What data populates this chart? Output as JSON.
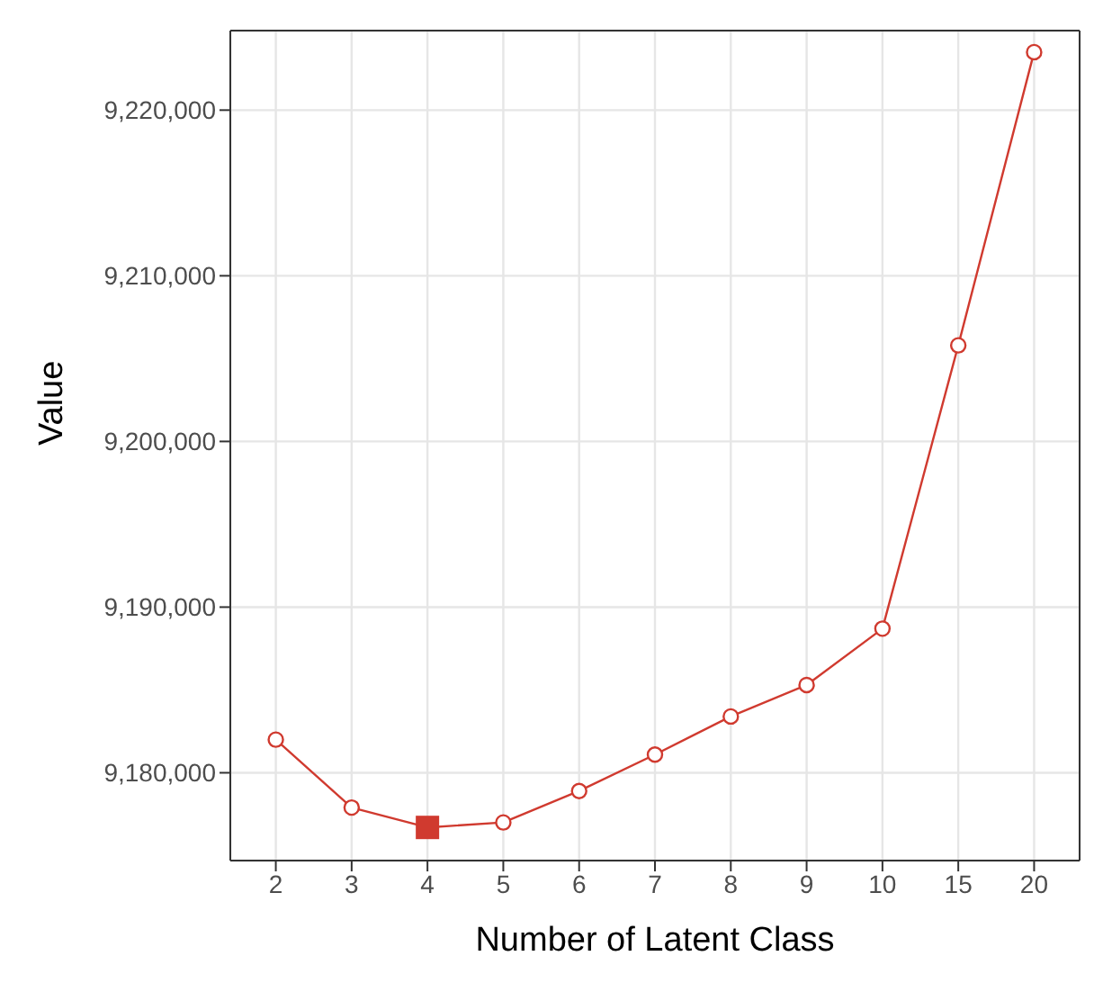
{
  "chart_data": {
    "type": "line",
    "xlabel": "Number of Latent Class",
    "ylabel": "Value",
    "categories": [
      "2",
      "3",
      "4",
      "5",
      "6",
      "7",
      "8",
      "9",
      "10",
      "15",
      "20"
    ],
    "series": [
      {
        "color": "#d03a2f",
        "marker": "circle",
        "values": [
          9182000,
          9177900,
          9176700,
          9177000,
          9178900,
          9181100,
          9183400,
          9185300,
          9188700,
          9205800,
          9223500
        ]
      },
      {
        "type": "scatter",
        "color": "#d03a2f",
        "marker": "square",
        "x": [
          "4"
        ],
        "values": [
          9176700
        ]
      }
    ],
    "ylim": [
      9174700,
      9224800
    ],
    "yticks": [
      {
        "value": 9180000,
        "label": "9,180,000"
      },
      {
        "value": 9190000,
        "label": "9,190,000"
      },
      {
        "value": 9200000,
        "label": "9,200,000"
      },
      {
        "value": 9210000,
        "label": "9,210,000"
      },
      {
        "value": 9220000,
        "label": "9,220,000"
      }
    ],
    "grid": true
  }
}
